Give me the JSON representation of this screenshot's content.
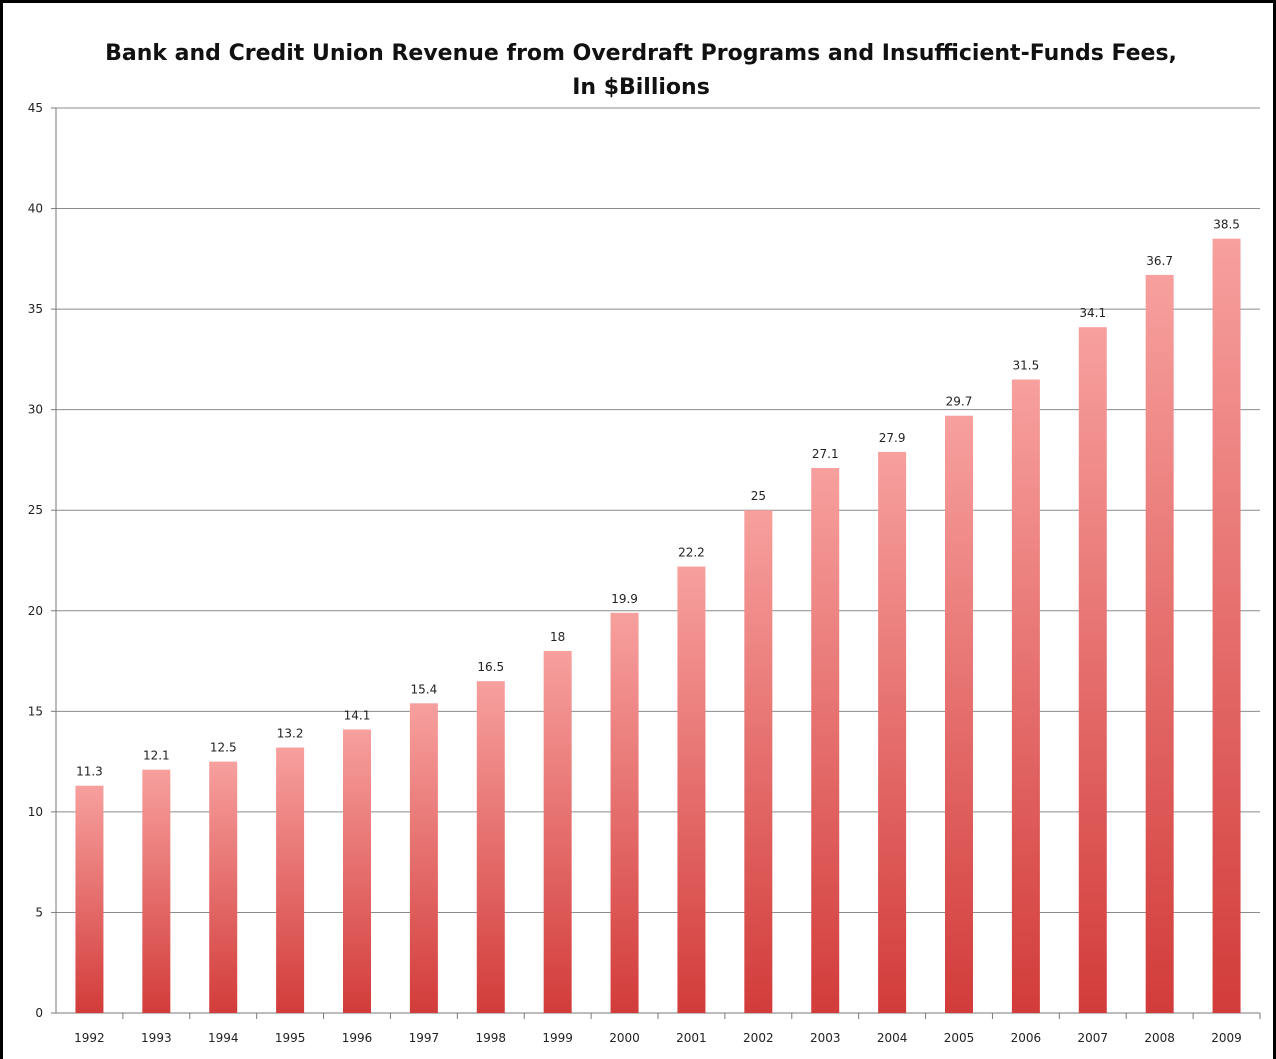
{
  "chart_data": {
    "type": "bar",
    "title": "Bank and Credit Union Revenue from Overdraft Programs and Insufficient-Funds Fees,",
    "subtitle": "In $Billions",
    "xlabel": "",
    "ylabel": "",
    "categories": [
      "1992",
      "1993",
      "1994",
      "1995",
      "1996",
      "1997",
      "1998",
      "1999",
      "2000",
      "2001",
      "2002",
      "2003",
      "2004",
      "2005",
      "2006",
      "2007",
      "2008",
      "2009"
    ],
    "values": [
      11.3,
      12.1,
      12.5,
      13.2,
      14.1,
      15.4,
      16.5,
      18,
      19.9,
      22.2,
      25,
      27.1,
      27.9,
      29.7,
      31.5,
      34.1,
      36.7,
      38.5
    ],
    "data_labels": [
      "11.3",
      "12.1",
      "12.5",
      "13.2",
      "14.1",
      "15.4",
      "16.5",
      "18",
      "19.9",
      "22.2",
      "25",
      "27.1",
      "27.9",
      "29.7",
      "31.5",
      "34.1",
      "36.7",
      "38.5"
    ],
    "yticks": [
      "0",
      "5",
      "10",
      "15",
      "20",
      "25",
      "30",
      "35",
      "40",
      "45"
    ],
    "ylim": [
      0,
      45
    ],
    "grid": true,
    "legend": "none",
    "colors": {
      "bar_top": "#f7a09e",
      "bar_bottom": "#d23c3a",
      "grid": "#8c8c8c",
      "axis": "#7a7a7a"
    }
  }
}
